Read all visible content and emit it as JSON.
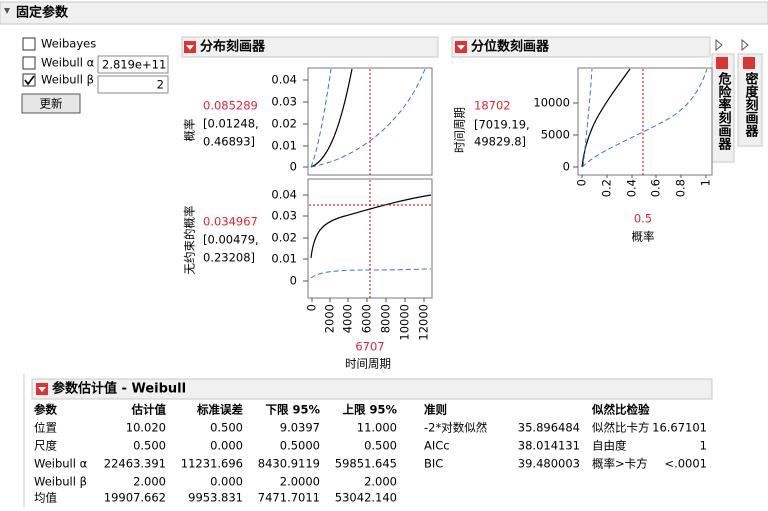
{
  "header": {
    "title": "固定参数"
  },
  "options": {
    "weibayes": "Weibayes",
    "alpha_label": "Weibull α",
    "alpha_value": "2.819e+11",
    "beta_label": "Weibull β",
    "beta_value": "2",
    "update_button": "更新"
  },
  "distribution_profiler": {
    "title": "分布刻画器",
    "plots": [
      {
        "y_label": "概率",
        "value": "0.085289",
        "ci_low": "[0.01248,",
        "ci_high": "0.46893]",
        "yticks": [
          "0.04",
          "0.03",
          "0.02",
          "0.01",
          "0"
        ]
      },
      {
        "y_label": "无约束的概率",
        "value": "0.034967",
        "ci_low": "[0.00479,",
        "ci_high": "0.23208]",
        "yticks": [
          "0.04",
          "0.03",
          "0.02",
          "0.01",
          "0"
        ]
      }
    ],
    "xticks": [
      "0",
      "2000",
      "4000",
      "6000",
      "8000",
      "10000",
      "12000"
    ],
    "x_value": "6707",
    "x_label": "时间周期"
  },
  "quantile_profiler": {
    "title": "分位数刻画器",
    "y_label": "时间周期",
    "value": "18702",
    "ci_low": "[7019.19,",
    "ci_high": "49829.8]",
    "yticks": [
      "10000",
      "5000",
      "0"
    ],
    "xticks": [
      "0",
      "0.2",
      "0.4",
      "0.6",
      "0.8",
      "1"
    ],
    "x_value": "0.5",
    "x_label": "概率"
  },
  "hazard_profiler": {
    "title": "危险率刻画器"
  },
  "density_profiler": {
    "title": "密度刻画器"
  },
  "estimates": {
    "title": "参数估计值 - Weibull",
    "columns": [
      "参数",
      "估计值",
      "标准误差",
      "下限 95%",
      "上限 95%"
    ],
    "rows": [
      [
        "位置",
        "10.020",
        "0.500",
        "9.0397",
        "11.000"
      ],
      [
        "尺度",
        "0.500",
        "0.000",
        "0.5000",
        "0.500"
      ],
      [
        "Weibull α",
        "22463.391",
        "11231.696",
        "8430.9119",
        "59851.645"
      ],
      [
        "Weibull β",
        "2.000",
        "0.000",
        "2.0000",
        "2.000"
      ],
      [
        "均值",
        "19907.662",
        "9953.831",
        "7471.7011",
        "53042.140"
      ]
    ]
  },
  "criteria": {
    "title": "准则",
    "rows": [
      [
        "-2*对数似然",
        "35.896484"
      ],
      [
        "AICc",
        "38.014131"
      ],
      [
        "BIC",
        "39.480003"
      ]
    ]
  },
  "likelihood_ratio": {
    "title": "似然比检验",
    "rows": [
      [
        "似然比卡方",
        "16.67101"
      ],
      [
        "自由度",
        "1"
      ],
      [
        "概率>卡方",
        "<.0001"
      ]
    ]
  }
}
